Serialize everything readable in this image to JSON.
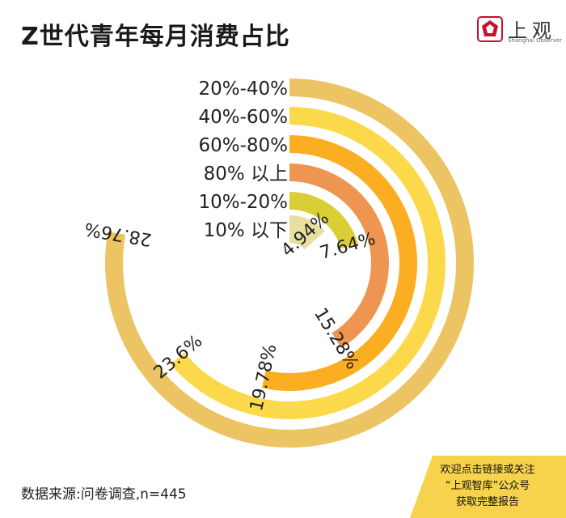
{
  "title": "Z世代青年每月消费占比",
  "brand": {
    "name": "上观",
    "subtitle": "Shanghai Observer",
    "color": "#c8102e"
  },
  "source": "数据来源:问卷调查,n=445",
  "promo": {
    "line1": "欢迎点击链接或关注",
    "line2": "“上观智库”公众号",
    "line3": "获取完整报告",
    "color": "#f7d24c"
  },
  "chart_data": {
    "type": "radial-bar",
    "title": "",
    "series": [
      {
        "name": "20%-40%",
        "value": 28.76,
        "label": "28.76%",
        "color": "#ecc463"
      },
      {
        "name": "40%-60%",
        "value": 23.6,
        "label": "23.6%",
        "color": "#fbd94a"
      },
      {
        "name": "60%-80%",
        "value": 19.78,
        "label": "19.78%",
        "color": "#fbae21"
      },
      {
        "name": "80% 以上",
        "value": 15.28,
        "label": "15.28%",
        "color": "#ef9552"
      },
      {
        "name": "10%-20%",
        "value": 7.64,
        "label": "7.64%",
        "color": "#d9cf35"
      },
      {
        "name": "10% 以下",
        "value": 4.94,
        "label": "4.94%",
        "color": "#e7dea0"
      }
    ],
    "full_scale_percent": 37
  }
}
